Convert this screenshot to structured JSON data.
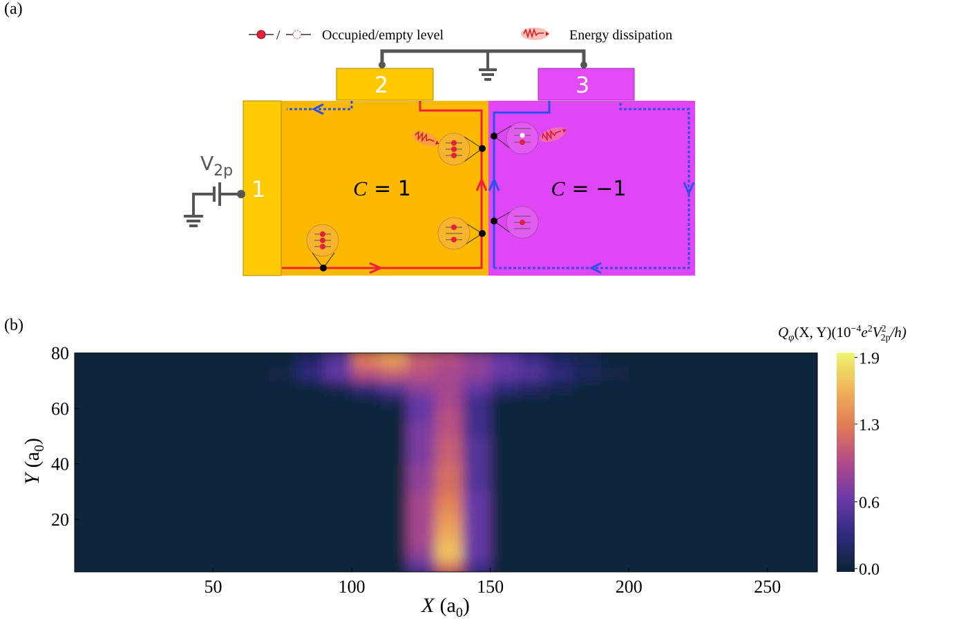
{
  "panel_a": {
    "label": "(a)",
    "legend": {
      "level": "Occupied/empty level",
      "dissipation": "Energy dissipation"
    },
    "contacts": [
      "1",
      "2",
      "3"
    ],
    "source": {
      "symbol": "V",
      "subscript": "2p"
    },
    "regions": [
      {
        "symbol": "C",
        "value": "= 1"
      },
      {
        "symbol": "C",
        "value": "= −1"
      }
    ]
  },
  "chart_data": {
    "type": "heatmap",
    "panel_label": "(b)",
    "xlabel": {
      "symbol": "X",
      "unit": "(a",
      "subscript": "0",
      "close": ")"
    },
    "ylabel": {
      "symbol": "Y",
      "unit": "(a",
      "subscript": "0",
      "close": ")"
    },
    "colorbar_title": [
      "Q",
      "φ",
      "(X, Y)(10",
      "−4",
      "e",
      "2",
      "V",
      "2",
      "2p",
      "/h)"
    ],
    "x": [
      5,
      15,
      25,
      35,
      45,
      55,
      65,
      75,
      85,
      95,
      105,
      115,
      125,
      135,
      145,
      155,
      165,
      175,
      185,
      195,
      205,
      215,
      225,
      235,
      245,
      255,
      265
    ],
    "y": [
      2.5,
      7.5,
      12.5,
      17.5,
      22.5,
      27.5,
      32.5,
      37.5,
      42.5,
      47.5,
      52.5,
      57.5,
      62.5,
      67.5,
      72.5,
      77.5
    ],
    "z": [
      [
        0,
        0,
        0,
        0,
        0,
        0,
        0,
        0,
        0,
        0,
        0,
        0,
        0.5,
        1.2,
        0.4,
        0,
        0,
        0,
        0,
        0,
        0,
        0,
        0,
        0,
        0,
        0,
        0
      ],
      [
        0,
        0,
        0,
        0,
        0,
        0,
        0,
        0,
        0,
        0,
        0,
        0,
        0.8,
        1.7,
        0.6,
        0,
        0,
        0,
        0,
        0,
        0,
        0,
        0,
        0,
        0,
        0,
        0
      ],
      [
        0,
        0,
        0,
        0,
        0,
        0,
        0,
        0,
        0,
        0,
        0,
        0,
        0.9,
        1.6,
        0.6,
        0,
        0,
        0,
        0,
        0,
        0,
        0,
        0,
        0,
        0,
        0,
        0
      ],
      [
        0,
        0,
        0,
        0,
        0,
        0,
        0,
        0,
        0,
        0,
        0,
        0,
        0.9,
        1.5,
        0.6,
        0,
        0,
        0,
        0,
        0,
        0,
        0,
        0,
        0,
        0,
        0,
        0
      ],
      [
        0,
        0,
        0,
        0,
        0,
        0,
        0,
        0,
        0,
        0,
        0,
        0,
        0.9,
        1.4,
        0.6,
        0,
        0,
        0,
        0,
        0,
        0,
        0,
        0,
        0,
        0,
        0,
        0
      ],
      [
        0,
        0,
        0,
        0,
        0,
        0,
        0,
        0,
        0,
        0,
        0,
        0,
        0.9,
        1.3,
        0.6,
        0,
        0,
        0,
        0,
        0,
        0,
        0,
        0,
        0,
        0,
        0,
        0
      ],
      [
        0,
        0,
        0,
        0,
        0,
        0,
        0,
        0,
        0,
        0,
        0,
        0,
        0.8,
        1.2,
        0.5,
        0,
        0,
        0,
        0,
        0,
        0,
        0,
        0,
        0,
        0,
        0,
        0
      ],
      [
        0,
        0,
        0,
        0,
        0,
        0,
        0,
        0,
        0,
        0,
        0,
        0,
        0.8,
        1.2,
        0.5,
        0,
        0,
        0,
        0,
        0,
        0,
        0,
        0,
        0,
        0,
        0,
        0
      ],
      [
        0,
        0,
        0,
        0,
        0,
        0,
        0,
        0,
        0,
        0,
        0,
        0,
        0.7,
        1.1,
        0.5,
        0,
        0,
        0,
        0,
        0,
        0,
        0,
        0,
        0,
        0,
        0,
        0
      ],
      [
        0,
        0,
        0,
        0,
        0,
        0,
        0,
        0,
        0,
        0,
        0,
        0,
        0.7,
        1.1,
        0.5,
        0,
        0,
        0,
        0,
        0,
        0,
        0,
        0,
        0,
        0,
        0,
        0
      ],
      [
        0,
        0,
        0,
        0,
        0,
        0,
        0,
        0,
        0,
        0,
        0,
        0,
        0.7,
        1.0,
        0.4,
        0,
        0,
        0,
        0,
        0,
        0,
        0,
        0,
        0,
        0,
        0,
        0
      ],
      [
        0,
        0,
        0,
        0,
        0,
        0,
        0,
        0,
        0,
        0,
        0,
        0,
        0.6,
        1.0,
        0.4,
        0,
        0,
        0,
        0,
        0,
        0,
        0,
        0,
        0,
        0,
        0,
        0
      ],
      [
        0,
        0,
        0,
        0,
        0,
        0,
        0,
        0,
        0,
        0,
        0,
        0.1,
        0.6,
        0.9,
        0.4,
        0,
        0,
        0,
        0,
        0,
        0,
        0,
        0,
        0,
        0,
        0,
        0
      ],
      [
        0,
        0,
        0,
        0,
        0,
        0,
        0,
        0,
        0,
        0.1,
        0.3,
        0.5,
        0.8,
        0.9,
        0.6,
        0.3,
        0.2,
        0.1,
        0,
        0,
        0,
        0,
        0,
        0,
        0,
        0,
        0
      ],
      [
        0,
        0,
        0,
        0,
        0,
        0,
        0,
        0.05,
        0.3,
        0.6,
        1.0,
        1.1,
        1.0,
        0.9,
        0.8,
        0.6,
        0.5,
        0.3,
        0.15,
        0.05,
        0,
        0,
        0,
        0,
        0,
        0,
        0
      ],
      [
        0,
        0,
        0,
        0,
        0,
        0,
        0,
        0,
        0.2,
        0.5,
        1.3,
        1.5,
        1.1,
        1.0,
        0.8,
        0.6,
        0.4,
        0.2,
        0.1,
        0,
        0,
        0,
        0,
        0,
        0,
        0,
        0
      ]
    ],
    "xlim": [
      0,
      268
    ],
    "ylim": [
      1,
      80
    ],
    "xticks": [
      50,
      100,
      150,
      200,
      250
    ],
    "yticks": [
      20,
      40,
      60,
      80
    ],
    "zlim": [
      -0.03,
      1.94
    ],
    "zticks": [
      {
        "value": 0,
        "label": "0.0"
      },
      0.6,
      1.3,
      1.9
    ],
    "colormap": [
      "#0c2434",
      "#2e2a7e",
      "#6a3aa8",
      "#b24a8a",
      "#e07a55",
      "#f0b45a",
      "#eef56e"
    ]
  }
}
